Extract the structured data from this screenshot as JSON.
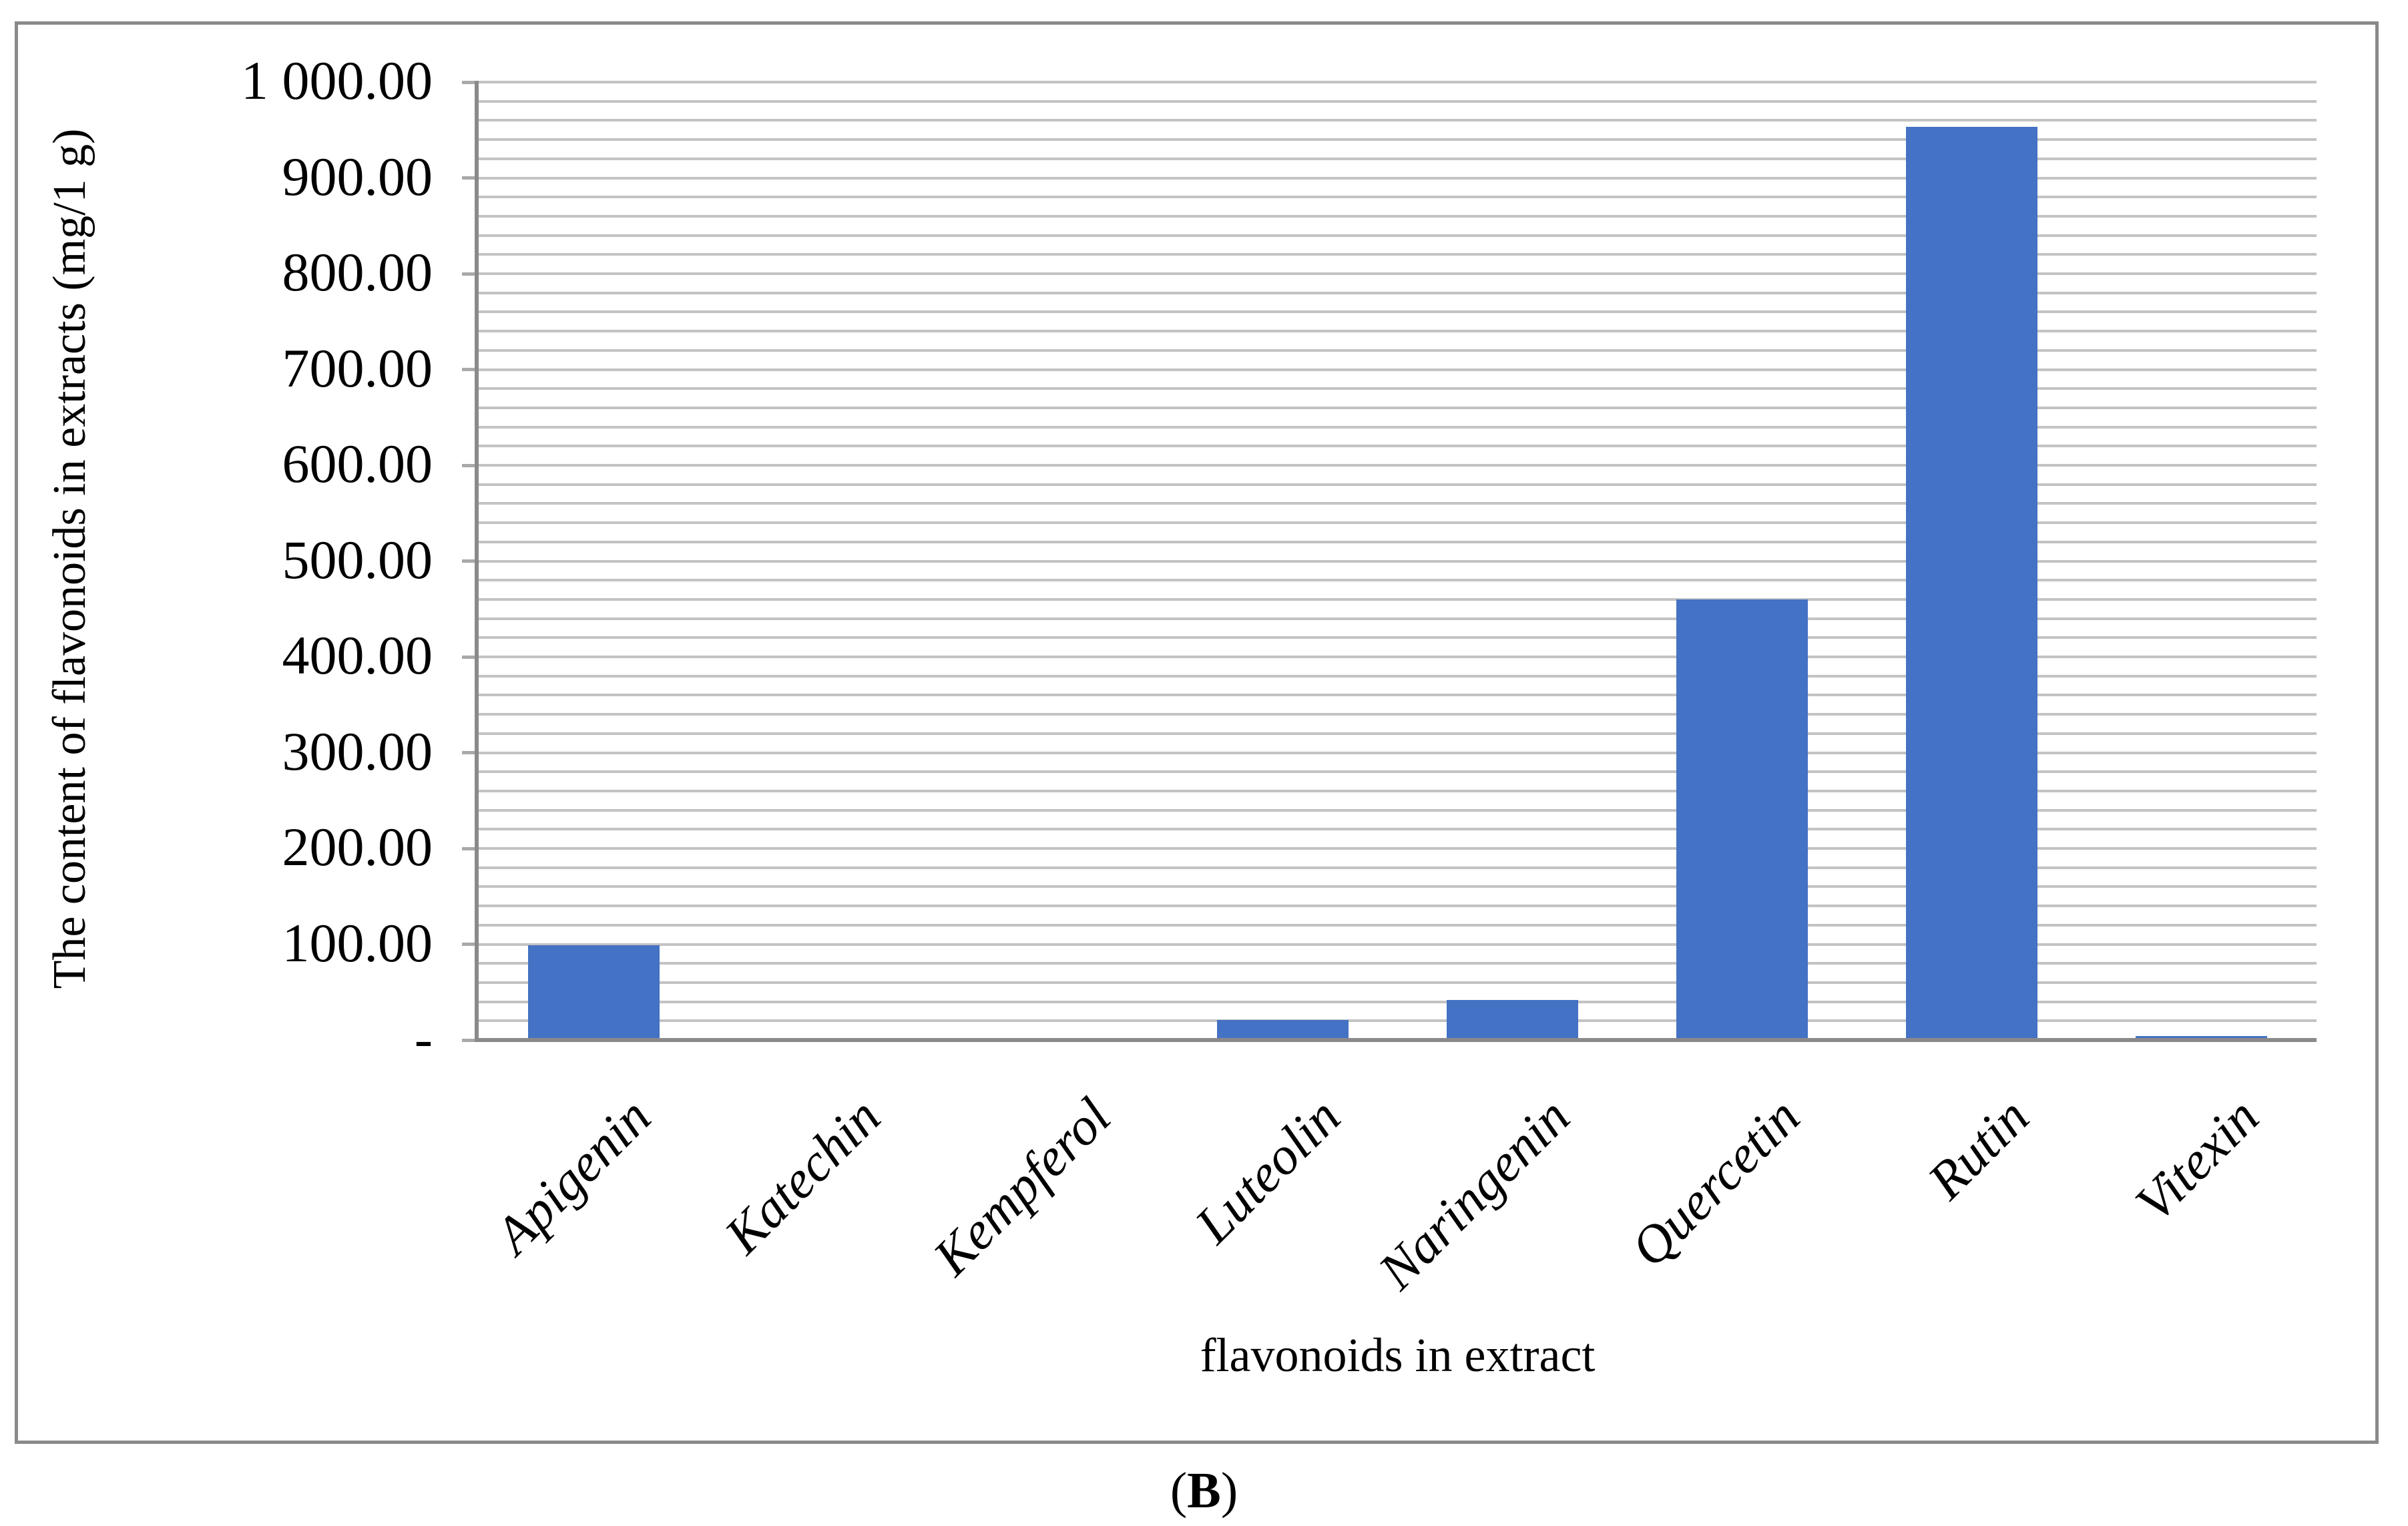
{
  "figure": {
    "caption_open": "(",
    "caption_letter": "B",
    "caption_close": ")"
  },
  "chart_data": {
    "type": "bar",
    "title": "",
    "xlabel": "flavonoids in extract",
    "ylabel": "The content of flavonoids in extracts (mg/1 g)",
    "categories": [
      "Apigenin",
      "Katechin",
      "Kempferol",
      "Luteolin",
      "Naringenin",
      "Quercetin",
      "Rutin",
      "Vitexin"
    ],
    "values": [
      99,
      0,
      0,
      21,
      42,
      460,
      953,
      4
    ],
    "ylim": [
      0,
      1000
    ],
    "y_major_step": 100,
    "y_minor_step": 20,
    "y_tick_values": [
      0,
      100,
      200,
      300,
      400,
      500,
      600,
      700,
      800,
      900,
      1000
    ],
    "y_tick_labels": [
      "-",
      "100.00",
      "200.00",
      "300.00",
      "400.00",
      "500.00",
      "600.00",
      "700.00",
      "800.00",
      "900.00",
      "1 000.00"
    ],
    "grid": true,
    "legend": "none",
    "category_label_rotation_deg": -45,
    "bar_color": "#4472c4",
    "gridline_color": "#c3c3c3",
    "tick_color": "#a9a9a9",
    "axis_color": "#8a8a8a",
    "frame_border_color": "#8a8a8a"
  }
}
